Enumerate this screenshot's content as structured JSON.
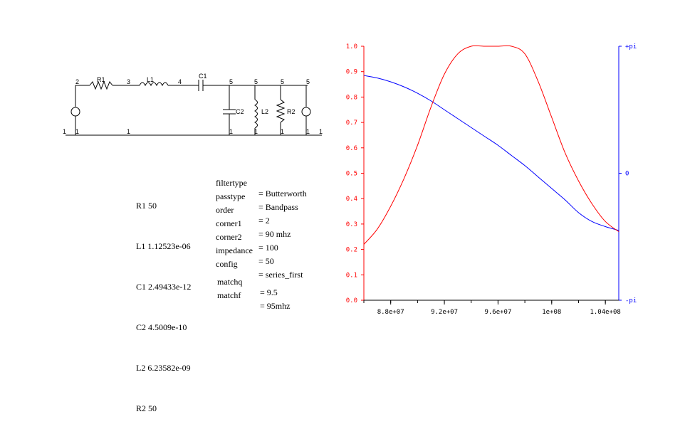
{
  "schematic": {
    "nodes": [
      "1",
      "2",
      "3",
      "4",
      "5",
      "5",
      "5",
      "5",
      "1",
      "1",
      "1",
      "1",
      "1",
      "1",
      "1",
      "1"
    ],
    "labels": {
      "R1": "R1",
      "L1": "L1",
      "C1": "C1",
      "C2": "C2",
      "L2": "L2",
      "R2": "R2"
    }
  },
  "components": [
    {
      "label": "R1 50"
    },
    {
      "label": "L1 1.12523e-06"
    },
    {
      "label": "C1 2.49433e-12"
    },
    {
      "label": "C2 4.5009e-10"
    },
    {
      "label": "L2 6.23582e-09"
    },
    {
      "label": "R2 50"
    }
  ],
  "params": [
    {
      "key": "filtertype",
      "value": "= Butterworth"
    },
    {
      "key": "passtype",
      "value": "= Bandpass"
    },
    {
      "key": "order",
      "value": "= 2"
    },
    {
      "key": "corner1",
      "value": "= 90 mhz"
    },
    {
      "key": "corner2",
      "value": "= 100"
    },
    {
      "key": "impedance",
      "value": "= 50"
    },
    {
      "key": "config",
      "value": "= series_first"
    }
  ],
  "match": [
    {
      "key": "matchq",
      "value": "= 9.5"
    },
    {
      "key": "matchf",
      "value": "= 95mhz"
    }
  ],
  "colors": {
    "magnitude": "#ff0000",
    "phase": "#0000ff",
    "axis_left": "#ff0000",
    "axis_right": "#0000ff",
    "axis_bottom": "#000000"
  },
  "chart_data": {
    "type": "line",
    "x_range": [
      86000000,
      105000000
    ],
    "x_ticks": [
      {
        "value": 88000000,
        "label": "8.8e+07"
      },
      {
        "value": 92000000,
        "label": "9.2e+07"
      },
      {
        "value": 96000000,
        "label": "9.6e+07"
      },
      {
        "value": 100000000,
        "label": "1e+08"
      },
      {
        "value": 104000000,
        "label": "1.04e+08"
      }
    ],
    "y_left_range": [
      0,
      1
    ],
    "y_left_ticks": [
      "0.0",
      "0.1",
      "0.2",
      "0.3",
      "0.4",
      "0.5",
      "0.6",
      "0.7",
      "0.8",
      "0.9",
      "1.0"
    ],
    "y_right_ticks": [
      {
        "value": 1,
        "label": "+pi"
      },
      {
        "value": 0,
        "label": "0"
      },
      {
        "value": -1,
        "label": "-pi"
      }
    ],
    "series": [
      {
        "axis": "left",
        "x": [
          86000000,
          87000000,
          88000000,
          89000000,
          90000000,
          91000000,
          92000000,
          93000000,
          94000000,
          95000000,
          96000000,
          97000000,
          98000000,
          99000000,
          100000000,
          101000000,
          102000000,
          103000000,
          104000000,
          105000000
        ],
        "values": [
          0.22,
          0.28,
          0.37,
          0.48,
          0.61,
          0.76,
          0.89,
          0.97,
          1.0,
          1.0,
          1.0,
          1.0,
          0.97,
          0.86,
          0.72,
          0.58,
          0.47,
          0.38,
          0.31,
          0.27
        ]
      },
      {
        "axis": "right",
        "x": [
          86000000,
          87000000,
          88000000,
          89000000,
          90000000,
          91000000,
          92000000,
          93000000,
          94000000,
          95000000,
          96000000,
          97000000,
          98000000,
          99000000,
          100000000,
          101000000,
          102000000,
          103000000,
          104000000,
          105000000
        ],
        "values": [
          0.77,
          0.75,
          0.72,
          0.68,
          0.63,
          0.57,
          0.5,
          0.43,
          0.36,
          0.29,
          0.22,
          0.14,
          0.06,
          -0.03,
          -0.12,
          -0.21,
          -0.31,
          -0.38,
          -0.42,
          -0.45
        ]
      }
    ]
  }
}
